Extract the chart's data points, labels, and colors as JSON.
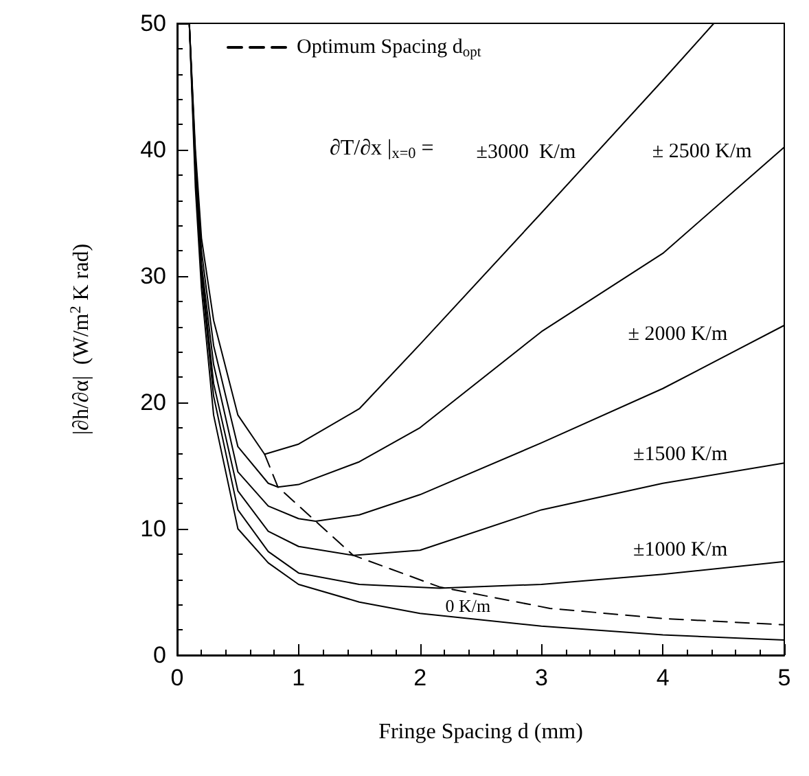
{
  "chart_data": {
    "type": "line",
    "xlabel": "Fringe Spacing d (mm)",
    "ylabel": "|∂h/∂α|  (W/m$^{2}$ K rad)",
    "xlim": [
      0,
      5
    ],
    "xticks": [
      0,
      1,
      2,
      3,
      4,
      5
    ],
    "ylim": [
      0,
      50
    ],
    "yticks": [
      0,
      10,
      20,
      30,
      40,
      50
    ],
    "grid": false,
    "legend": "top",
    "marker": "none",
    "annotations": [
      "∂T/∂x |$_{x=0}$ ="
    ],
    "series": [
      {
        "name": "0 K/m",
        "color": "#000000",
        "x": [
          0.1,
          0.15,
          0.2,
          0.3,
          0.5,
          0.75,
          1,
          1.5,
          2,
          3,
          4,
          5
        ],
        "values": [
          50,
          37,
          29,
          19,
          10,
          7.3,
          5.6,
          4.2,
          3.3,
          2.3,
          1.6,
          1.2
        ]
      },
      {
        "name": "±1000 K/m",
        "color": "#000000",
        "x": [
          0.1,
          0.15,
          0.2,
          0.3,
          0.5,
          0.75,
          1,
          1.5,
          2.16,
          3,
          4,
          5
        ],
        "values": [
          50,
          38,
          30,
          20.5,
          11.5,
          8.2,
          6.5,
          5.6,
          5.3,
          5.6,
          6.4,
          7.4
        ]
      },
      {
        "name": "±1500 K/m",
        "color": "#000000",
        "x": [
          0.1,
          0.15,
          0.2,
          0.3,
          0.5,
          0.75,
          1,
          1.45,
          2,
          3,
          4,
          5
        ],
        "values": [
          50,
          38.5,
          30.5,
          21.5,
          13,
          9.8,
          8.6,
          7.9,
          8.3,
          11.5,
          13.6,
          15.2
        ]
      },
      {
        "name": "± 2000 K/m",
        "color": "#000000",
        "x": [
          0.1,
          0.15,
          0.2,
          0.3,
          0.5,
          0.75,
          1,
          1.14,
          1.5,
          2,
          3,
          4,
          5
        ],
        "values": [
          50,
          39,
          31,
          23,
          14.5,
          11.8,
          10.8,
          10.6,
          11.1,
          12.7,
          16.8,
          21.1,
          26.1
        ]
      },
      {
        "name": "± 2500 K/m",
        "color": "#000000",
        "x": [
          0.1,
          0.15,
          0.2,
          0.3,
          0.5,
          0.75,
          0.83,
          1,
          1.5,
          2,
          3,
          4,
          5
        ],
        "values": [
          50,
          39.5,
          32,
          24.5,
          16.5,
          13.6,
          13.3,
          13.5,
          15.3,
          18,
          25.6,
          31.8,
          40.2
        ]
      },
      {
        "name": "±3000  K/m",
        "color": "#000000",
        "x": [
          0.1,
          0.15,
          0.2,
          0.3,
          0.5,
          0.72,
          1,
          1.5,
          2,
          3,
          4,
          4.42
        ],
        "values": [
          50,
          40,
          33,
          26.5,
          19,
          15.9,
          16.7,
          19.5,
          24.6,
          35,
          45.5,
          50
        ]
      },
      {
        "name": "Optimum Spacing d$_{opt}$",
        "color": "#000000",
        "line_style": "dashed",
        "x": [
          0.72,
          0.83,
          1.14,
          1.45,
          2.16,
          3.07,
          4,
          5
        ],
        "values": [
          15.9,
          13.3,
          10.6,
          7.9,
          5.4,
          3.7,
          2.9,
          2.4
        ]
      }
    ]
  }
}
